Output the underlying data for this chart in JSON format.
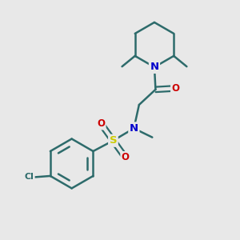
{
  "background_color": "#e8e8e8",
  "bond_color": "#2d6b6b",
  "atom_colors": {
    "N": "#0000cc",
    "O": "#cc0000",
    "S": "#cccc00",
    "Cl": "#2d6b6b",
    "C": "#2d6b6b"
  },
  "figsize": [
    3.0,
    3.0
  ],
  "dpi": 100,
  "xlim": [
    0,
    10
  ],
  "ylim": [
    0,
    10
  ]
}
